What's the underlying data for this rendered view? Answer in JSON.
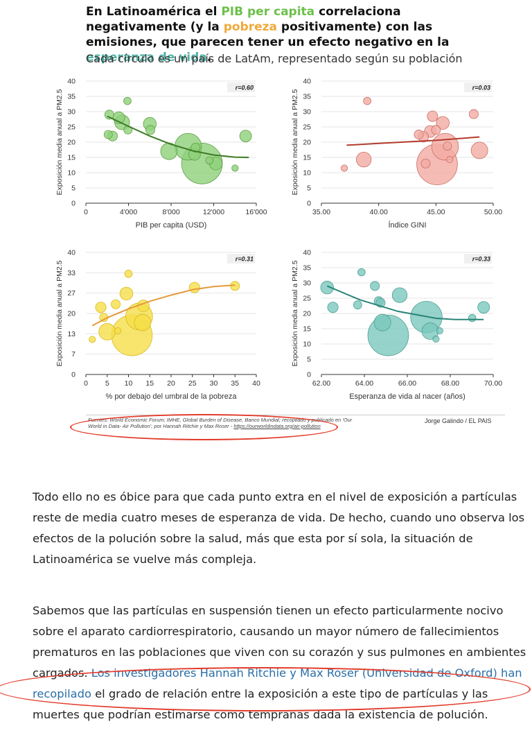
{
  "headline": {
    "part1": "En Latinoamérica el ",
    "pib": "PIB per capita",
    "part2": " correlaciona negativamente (y la ",
    "pobreza": "pobreza",
    "part3": " positivamente) con las emisiones, que parecen tener un efecto negativo en la ",
    "esperanza": "esperanza de vida",
    "part4": "."
  },
  "subtitle": "Cada círculo es un país de LatAm, representado según su población",
  "chart_data": [
    {
      "type": "scatter",
      "color": "#8fd17a",
      "stroke": "#5e9f44",
      "trend_color": "#3d7a25",
      "ylabel": "Exposición media anual a PM2.5",
      "xlabel": "PIB per capita (USD)",
      "xticks": [
        "0",
        "4'000",
        "8'000",
        "12'000",
        "16'000"
      ],
      "xlim": [
        0,
        16000
      ],
      "yticks": [
        "0",
        "5",
        "10",
        "15",
        "20",
        "25",
        "30",
        "35",
        "40"
      ],
      "ylim": [
        0,
        40
      ],
      "r_label": "r=0.60",
      "trend": [
        [
          2000,
          28.5
        ],
        [
          4000,
          25.2
        ],
        [
          6000,
          22.0
        ],
        [
          8000,
          19.3
        ],
        [
          10000,
          17.2
        ],
        [
          12000,
          15.8
        ],
        [
          14000,
          15.1
        ],
        [
          15300,
          15.0
        ]
      ],
      "points": [
        {
          "x": 2200,
          "y": 29,
          "s": 0.3
        },
        {
          "x": 2100,
          "y": 22.5,
          "s": 0.25
        },
        {
          "x": 2500,
          "y": 22,
          "s": 0.35
        },
        {
          "x": 3100,
          "y": 28,
          "s": 0.5
        },
        {
          "x": 3400,
          "y": 26.5,
          "s": 0.8
        },
        {
          "x": 3900,
          "y": 33.5,
          "s": 0.2
        },
        {
          "x": 3950,
          "y": 24,
          "s": 0.25
        },
        {
          "x": 6000,
          "y": 26,
          "s": 0.6
        },
        {
          "x": 6050,
          "y": 24,
          "s": 0.3
        },
        {
          "x": 7800,
          "y": 17,
          "s": 1.0
        },
        {
          "x": 9600,
          "y": 18.5,
          "s": 2.6
        },
        {
          "x": 10300,
          "y": 18.2,
          "s": 0.3
        },
        {
          "x": 10200,
          "y": 16,
          "s": 0.5
        },
        {
          "x": 10900,
          "y": 13,
          "s": 6.0
        },
        {
          "x": 11600,
          "y": 14,
          "s": 0.2
        },
        {
          "x": 12200,
          "y": 13,
          "s": 0.6
        },
        {
          "x": 14000,
          "y": 11.5,
          "s": 0.15
        },
        {
          "x": 15000,
          "y": 22,
          "s": 0.5
        }
      ]
    },
    {
      "type": "scatter",
      "color": "#f2aba4",
      "stroke": "#cc6d63",
      "trend_color": "#b23a2c",
      "ylabel": "Exposición media anual a PM2.5",
      "xlabel": "Índice GINI",
      "xticks": [
        "35.00",
        "40.00",
        "45.00",
        "50.00"
      ],
      "xlim": [
        35,
        50
      ],
      "yticks": [
        "0",
        "5",
        "10",
        "15",
        "20",
        "25",
        "30",
        "35",
        "40"
      ],
      "ylim": [
        0,
        40
      ],
      "r_label": "r=0.03",
      "trend": [
        [
          37.2,
          19.0
        ],
        [
          40,
          19.6
        ],
        [
          45,
          20.6
        ],
        [
          48.8,
          21.7
        ]
      ],
      "points": [
        {
          "x": 37,
          "y": 11.5,
          "s": 0.15
        },
        {
          "x": 38.7,
          "y": 14.3,
          "s": 0.8
        },
        {
          "x": 39,
          "y": 33.5,
          "s": 0.2
        },
        {
          "x": 43.5,
          "y": 22.5,
          "s": 0.3
        },
        {
          "x": 43.9,
          "y": 21.8,
          "s": 0.4
        },
        {
          "x": 44.1,
          "y": 13,
          "s": 0.3
        },
        {
          "x": 44.7,
          "y": 28.5,
          "s": 0.4
        },
        {
          "x": 44.5,
          "y": 23.5,
          "s": 0.5
        },
        {
          "x": 45.0,
          "y": 24,
          "s": 0.3
        },
        {
          "x": 45.1,
          "y": 12.7,
          "s": 6.0
        },
        {
          "x": 45.6,
          "y": 26.3,
          "s": 0.6
        },
        {
          "x": 45.8,
          "y": 18.5,
          "s": 2.6
        },
        {
          "x": 46,
          "y": 18.7,
          "s": 0.25
        },
        {
          "x": 46.2,
          "y": 14.3,
          "s": 0.15
        },
        {
          "x": 48.3,
          "y": 29.2,
          "s": 0.3
        },
        {
          "x": 48.8,
          "y": 17.3,
          "s": 1.0
        }
      ]
    },
    {
      "type": "scatter",
      "color": "#f5de4a",
      "stroke": "#d9b91f",
      "trend_color": "#e59a3a",
      "ylabel": "Exposición media anual a PM2.5",
      "xlabel": "% por debajo del umbral de la pobreza",
      "xticks": [
        "0",
        "5",
        "10",
        "15",
        "20",
        "25",
        "30",
        "35",
        "40"
      ],
      "xlim": [
        0,
        40
      ],
      "yticks": [
        "0",
        "7",
        "13",
        "20",
        "27",
        "33",
        "40"
      ],
      "ylim": [
        0,
        40
      ],
      "r_label": "r=0.31",
      "trend": [
        [
          1.5,
          16
        ],
        [
          5,
          18.6
        ],
        [
          10,
          21.5
        ],
        [
          15,
          24.0
        ],
        [
          20,
          26.0
        ],
        [
          25,
          27.8
        ],
        [
          30,
          28.8
        ],
        [
          35,
          29.3
        ]
      ],
      "points": [
        {
          "x": 1.5,
          "y": 11.5,
          "s": 0.15
        },
        {
          "x": 3.5,
          "y": 22,
          "s": 0.4
        },
        {
          "x": 4.2,
          "y": 18.7,
          "s": 0.25
        },
        {
          "x": 5,
          "y": 14,
          "s": 1.0
        },
        {
          "x": 7,
          "y": 23,
          "s": 0.3
        },
        {
          "x": 7.5,
          "y": 14.3,
          "s": 0.15
        },
        {
          "x": 9.5,
          "y": 26.5,
          "s": 0.6
        },
        {
          "x": 10,
          "y": 33,
          "s": 0.2
        },
        {
          "x": 10.8,
          "y": 12.8,
          "s": 6.0
        },
        {
          "x": 12.5,
          "y": 19,
          "s": 2.6
        },
        {
          "x": 13.3,
          "y": 17,
          "s": 1.0
        },
        {
          "x": 13.5,
          "y": 22.5,
          "s": 0.5
        },
        {
          "x": 25.5,
          "y": 28.5,
          "s": 0.4
        },
        {
          "x": 35,
          "y": 29,
          "s": 0.3
        }
      ]
    },
    {
      "type": "scatter",
      "color": "#7cc8bd",
      "stroke": "#4b9f94",
      "trend_color": "#2a8478",
      "ylabel": "Exposición media anual a PM2.5",
      "xlabel": "Esperanza de vida al nacer (años)",
      "xticks": [
        "62.00",
        "64.00",
        "66.00",
        "68.00",
        "70.00"
      ],
      "xlim": [
        62,
        71
      ],
      "yticks": [
        "0",
        "5",
        "10",
        "15",
        "20",
        "25",
        "30",
        "35",
        "40"
      ],
      "ylim": [
        0,
        40
      ],
      "r_label": "r=0.33",
      "trend": [
        [
          62.3,
          29
        ],
        [
          64,
          24.5
        ],
        [
          66,
          20.7
        ],
        [
          68,
          18.4
        ],
        [
          69,
          18.0
        ],
        [
          70.5,
          18.0
        ]
      ],
      "points": [
        {
          "x": 62.3,
          "y": 28.5,
          "s": 0.6
        },
        {
          "x": 62.6,
          "y": 22,
          "s": 0.4
        },
        {
          "x": 63.9,
          "y": 22.8,
          "s": 0.25
        },
        {
          "x": 64.1,
          "y": 33.5,
          "s": 0.2
        },
        {
          "x": 64.8,
          "y": 29,
          "s": 0.3
        },
        {
          "x": 65.0,
          "y": 24,
          "s": 0.3
        },
        {
          "x": 65.1,
          "y": 23.5,
          "s": 0.3
        },
        {
          "x": 65.2,
          "y": 17,
          "s": 1.0
        },
        {
          "x": 65.5,
          "y": 12.8,
          "s": 6.0
        },
        {
          "x": 66.1,
          "y": 26,
          "s": 0.8
        },
        {
          "x": 67.5,
          "y": 18.8,
          "s": 3.6
        },
        {
          "x": 67.7,
          "y": 14.2,
          "s": 1.0
        },
        {
          "x": 68,
          "y": 11.6,
          "s": 0.15
        },
        {
          "x": 68.2,
          "y": 14.3,
          "s": 0.15
        },
        {
          "x": 69.9,
          "y": 18.5,
          "s": 0.2
        },
        {
          "x": 70.5,
          "y": 22,
          "s": 0.5
        }
      ]
    }
  ],
  "footer": {
    "sources": "Fuentes: World Economic Forum; IMHE, Global Burden of Disease, Banco Mundial; recopilado y publicado en 'Our World in Data- Air Pollution', por Hannah Ritchie y Max Roser - ",
    "link": "https://ourworldindata.org/air-pollution",
    "credit": "Jorge Galindo / EL PAIS"
  },
  "article": {
    "p1": "Todo ello no es óbice para que cada punto extra en el nivel de exposición a partículas reste de media cuatro meses de esperanza de vida. De hecho, cuando uno observa los efectos de la polución sobre la salud, más que esta por sí sola, la situación de Latinoamérica se vuelve más compleja.",
    "p2_before": "Sabemos que las partículas en suspensión tienen un efecto particularmente nocivo sobre el aparato cardiorrespiratorio, causando un mayor número de fallecimientos prematuros en las poblaciones que viven con su corazón y sus pulmones en ambientes cargados. ",
    "p2_link": "Los investigadores Hannah Ritchie y Max Roser (Universidad de Oxford) han recopilado",
    "p2_after": " el grado de relación entre la exposición a este tipo de partículas y las muertes que podrían estimarse como tempranas dada la existencia de polución."
  }
}
